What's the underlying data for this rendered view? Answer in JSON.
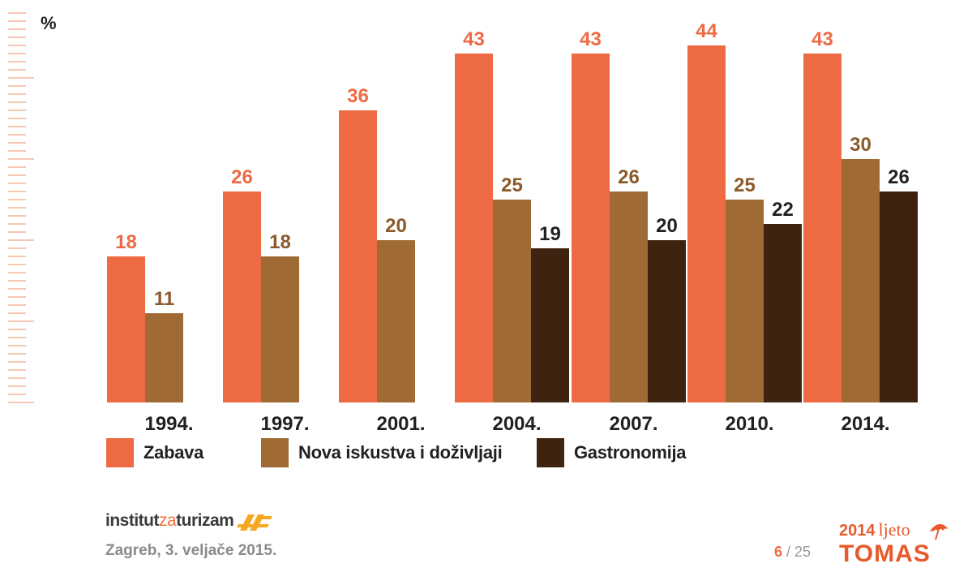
{
  "chart_data": {
    "type": "bar",
    "ylabel": "%",
    "ylim": [
      0,
      48
    ],
    "categories": [
      "1994.",
      "1997.",
      "2001.",
      "2004.",
      "2007.",
      "2010.",
      "2014."
    ],
    "series": [
      {
        "name": "Zabava",
        "color": "#ee6a43",
        "values": [
          18,
          26,
          36,
          43,
          43,
          44,
          43
        ]
      },
      {
        "name": "Nova iskustva i doživljaji",
        "color": "#a06a34",
        "values": [
          11,
          18,
          20,
          25,
          26,
          25,
          30
        ]
      },
      {
        "name": "Gastronomija",
        "color": "#3e2410",
        "values": [
          null,
          null,
          null,
          19,
          20,
          22,
          26
        ]
      }
    ],
    "label_colors": [
      "#ee6a43",
      "#8a5a2b",
      "#231f20"
    ]
  },
  "footer": {
    "logo_institut": "institut",
    "logo_za": "za",
    "logo_turizam": "turizam",
    "date": "Zagreb, 3. veljače 2015.",
    "page_current": "6",
    "page_sep": " / ",
    "page_total": "25"
  },
  "brand": {
    "year": "2014",
    "season": "ljeto",
    "name": "TOMAS"
  }
}
